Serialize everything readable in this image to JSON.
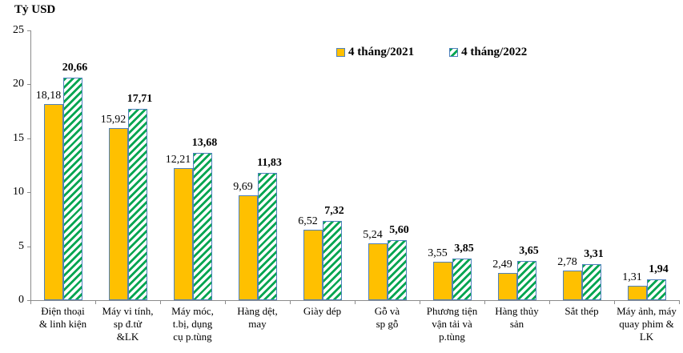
{
  "chart_data": {
    "type": "bar",
    "title": "Tỷ USD",
    "ylabel": "Tỷ USD",
    "ylim": [
      0,
      25
    ],
    "yticks": [
      0,
      5,
      10,
      15,
      20,
      25
    ],
    "grid": false,
    "legend_position": "top-center",
    "categories": [
      [
        "Điện thoại",
        "& linh kiện"
      ],
      [
        "Máy vi tính,",
        "sp đ.tử",
        "&LK"
      ],
      [
        "Máy móc,",
        "t.bị, dụng",
        "cụ p.tùng"
      ],
      [
        "Hàng dệt,",
        "may"
      ],
      [
        "Giày dép"
      ],
      [
        "Gỗ và",
        "sp gỗ"
      ],
      [
        "Phương tiện",
        "vận tải và",
        "p.tùng"
      ],
      [
        "Hàng thủy",
        "sản"
      ],
      [
        "Sắt thép"
      ],
      [
        "Máy ảnh, máy",
        "quay phim &",
        "LK"
      ]
    ],
    "series": [
      {
        "key": "2021",
        "name": "4 tháng/2021",
        "color": "#FFC000",
        "pattern": "solid",
        "values": [
          18.18,
          15.92,
          12.21,
          9.69,
          6.52,
          5.24,
          3.55,
          2.49,
          2.78,
          1.31
        ],
        "labels": [
          "18,18",
          "15,92",
          "12,21",
          "9,69",
          "6,52",
          "5,24",
          "3,55",
          "2,49",
          "2,78",
          "1,31"
        ]
      },
      {
        "key": "2022",
        "name": "4 tháng/2022",
        "color": "#00A550",
        "pattern": "diagonal-hatch",
        "values": [
          20.66,
          17.71,
          13.68,
          11.83,
          7.32,
          5.6,
          3.85,
          3.65,
          3.31,
          1.94
        ],
        "labels": [
          "20,66",
          "17,71",
          "13,68",
          "11,83",
          "7,32",
          "5,60",
          "3,85",
          "3,65",
          "3,31",
          "1,94"
        ]
      }
    ],
    "colors": {
      "bar_2021": "#FFC000",
      "bar_2022_stripe": "#00A550",
      "bar_border": "#4F81BD",
      "axis": "#8C8C8C",
      "text": "#000000"
    }
  }
}
